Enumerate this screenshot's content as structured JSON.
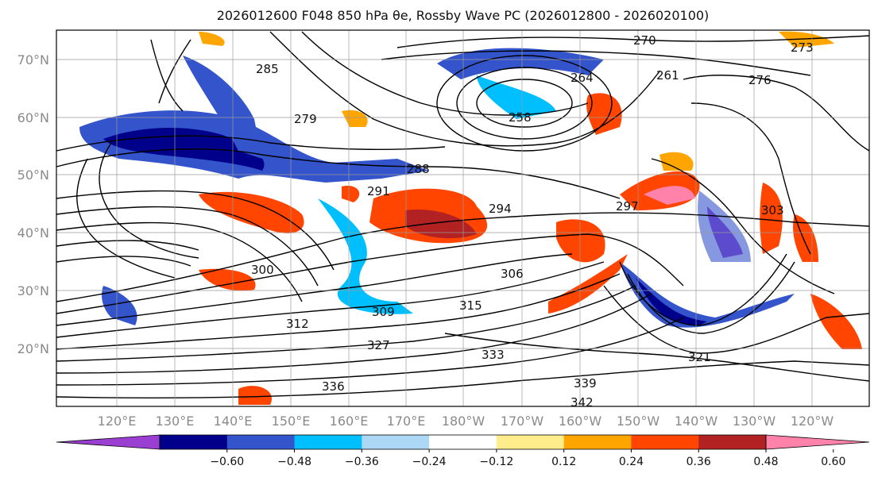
{
  "title": "2026012600 F048 850 hPa θe, Rossby Wave PC (2026012800 - 2026020100)",
  "lat_labels": [
    "70°N",
    "60°N",
    "50°N",
    "40°N",
    "30°N",
    "20°N"
  ],
  "lon_labels": [
    "120°E",
    "130°E",
    "140°E",
    "150°E",
    "160°E",
    "170°E",
    "180°W",
    "170°W",
    "160°W",
    "150°W",
    "140°W",
    "130°W",
    "120°W"
  ],
  "colorbar": {
    "colors": [
      "#9b3fd3",
      "#00008b",
      "#3454cc",
      "#00bfff",
      "#add8f5",
      "#ffffff",
      "#ffec8b",
      "#ffa500",
      "#ff4500",
      "#b22222",
      "#ff82ab"
    ],
    "ticks": [
      "−0.60",
      "−0.48",
      "−0.36",
      "−0.24",
      "−0.12",
      "0.12",
      "0.24",
      "0.36",
      "0.48",
      "0.60"
    ]
  },
  "contour_labels": [
    {
      "text": "270"
    },
    {
      "text": "285"
    },
    {
      "text": "279"
    },
    {
      "text": "288"
    },
    {
      "text": "291"
    },
    {
      "text": "294"
    },
    {
      "text": "297"
    },
    {
      "text": "300"
    },
    {
      "text": "306"
    },
    {
      "text": "309"
    },
    {
      "text": "312"
    },
    {
      "text": "315"
    },
    {
      "text": "327"
    },
    {
      "text": "333"
    },
    {
      "text": "336"
    },
    {
      "text": "339"
    },
    {
      "text": "342"
    },
    {
      "text": "264"
    },
    {
      "text": "261"
    },
    {
      "text": "258"
    },
    {
      "text": "276"
    },
    {
      "text": "273"
    },
    {
      "text": "303"
    },
    {
      "text": "321"
    }
  ]
}
